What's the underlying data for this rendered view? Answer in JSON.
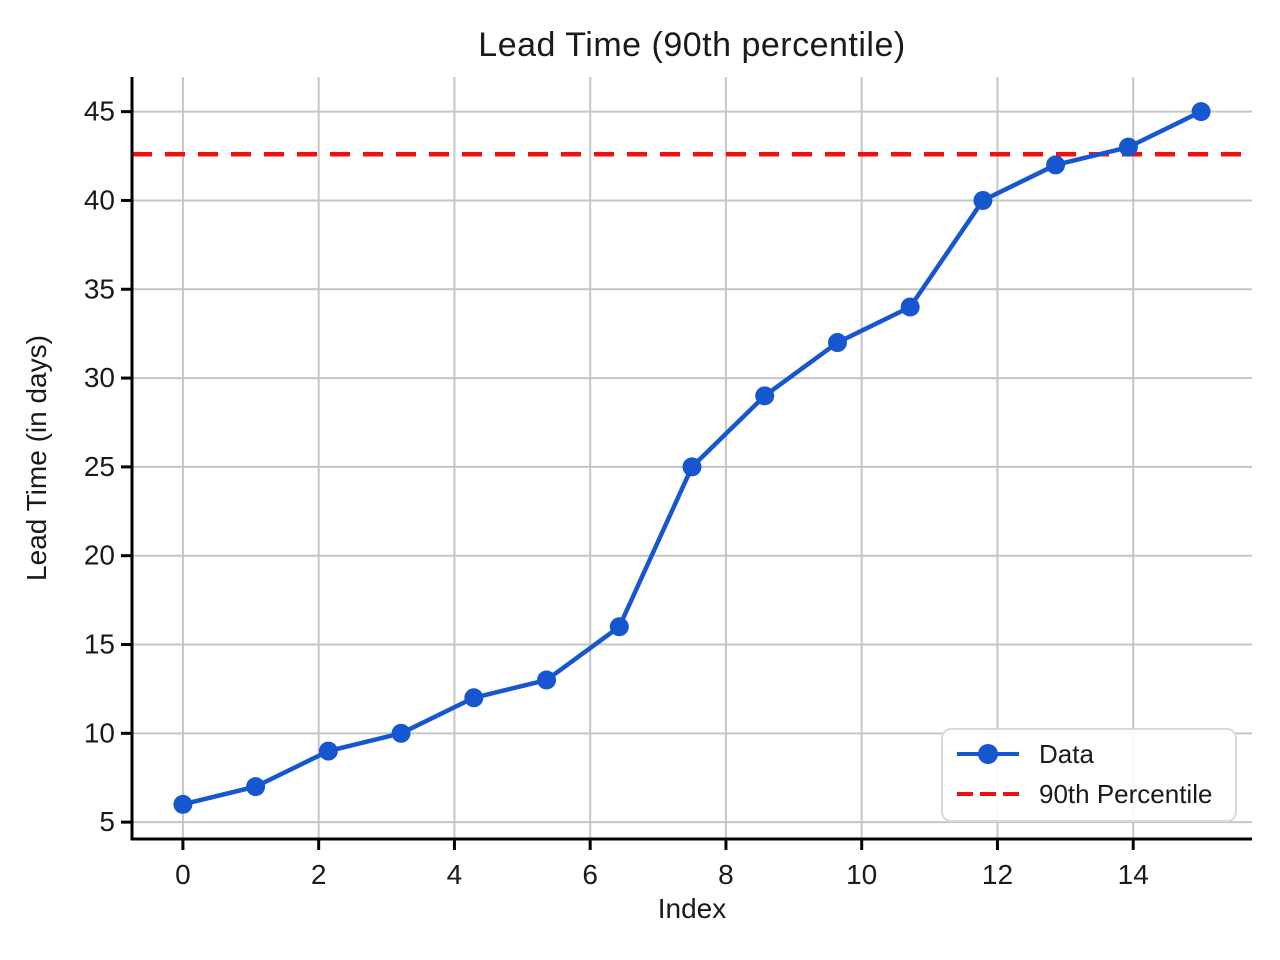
{
  "chart_data": {
    "type": "line",
    "title": "Lead Time (90th percentile)",
    "xlabel": "Index",
    "ylabel": "Lead Time (in days)",
    "x": [
      0,
      1.071,
      2.143,
      3.214,
      4.286,
      5.357,
      6.429,
      7.5,
      8.571,
      9.643,
      10.714,
      11.786,
      12.857,
      13.929,
      15
    ],
    "series": [
      {
        "name": "Data",
        "values": [
          6,
          7,
          9,
          10,
          12,
          13,
          16,
          25,
          29,
          32,
          34,
          40,
          42,
          43,
          45
        ]
      }
    ],
    "percentile_line": {
      "label": "90th Percentile",
      "value": 42.6
    },
    "x_ticks": [
      0,
      2,
      4,
      6,
      8,
      10,
      12,
      14
    ],
    "y_ticks": [
      5,
      10,
      15,
      20,
      25,
      30,
      35,
      40,
      45
    ],
    "xlim": [
      -0.75,
      15.75
    ],
    "ylim": [
      4.05,
      46.95
    ],
    "grid": true,
    "legend_position": "lower right",
    "colors": {
      "data_line": "#1657d0",
      "percentile_line": "#f11010",
      "grid": "#c6c6c6",
      "axis": "#000000"
    }
  }
}
